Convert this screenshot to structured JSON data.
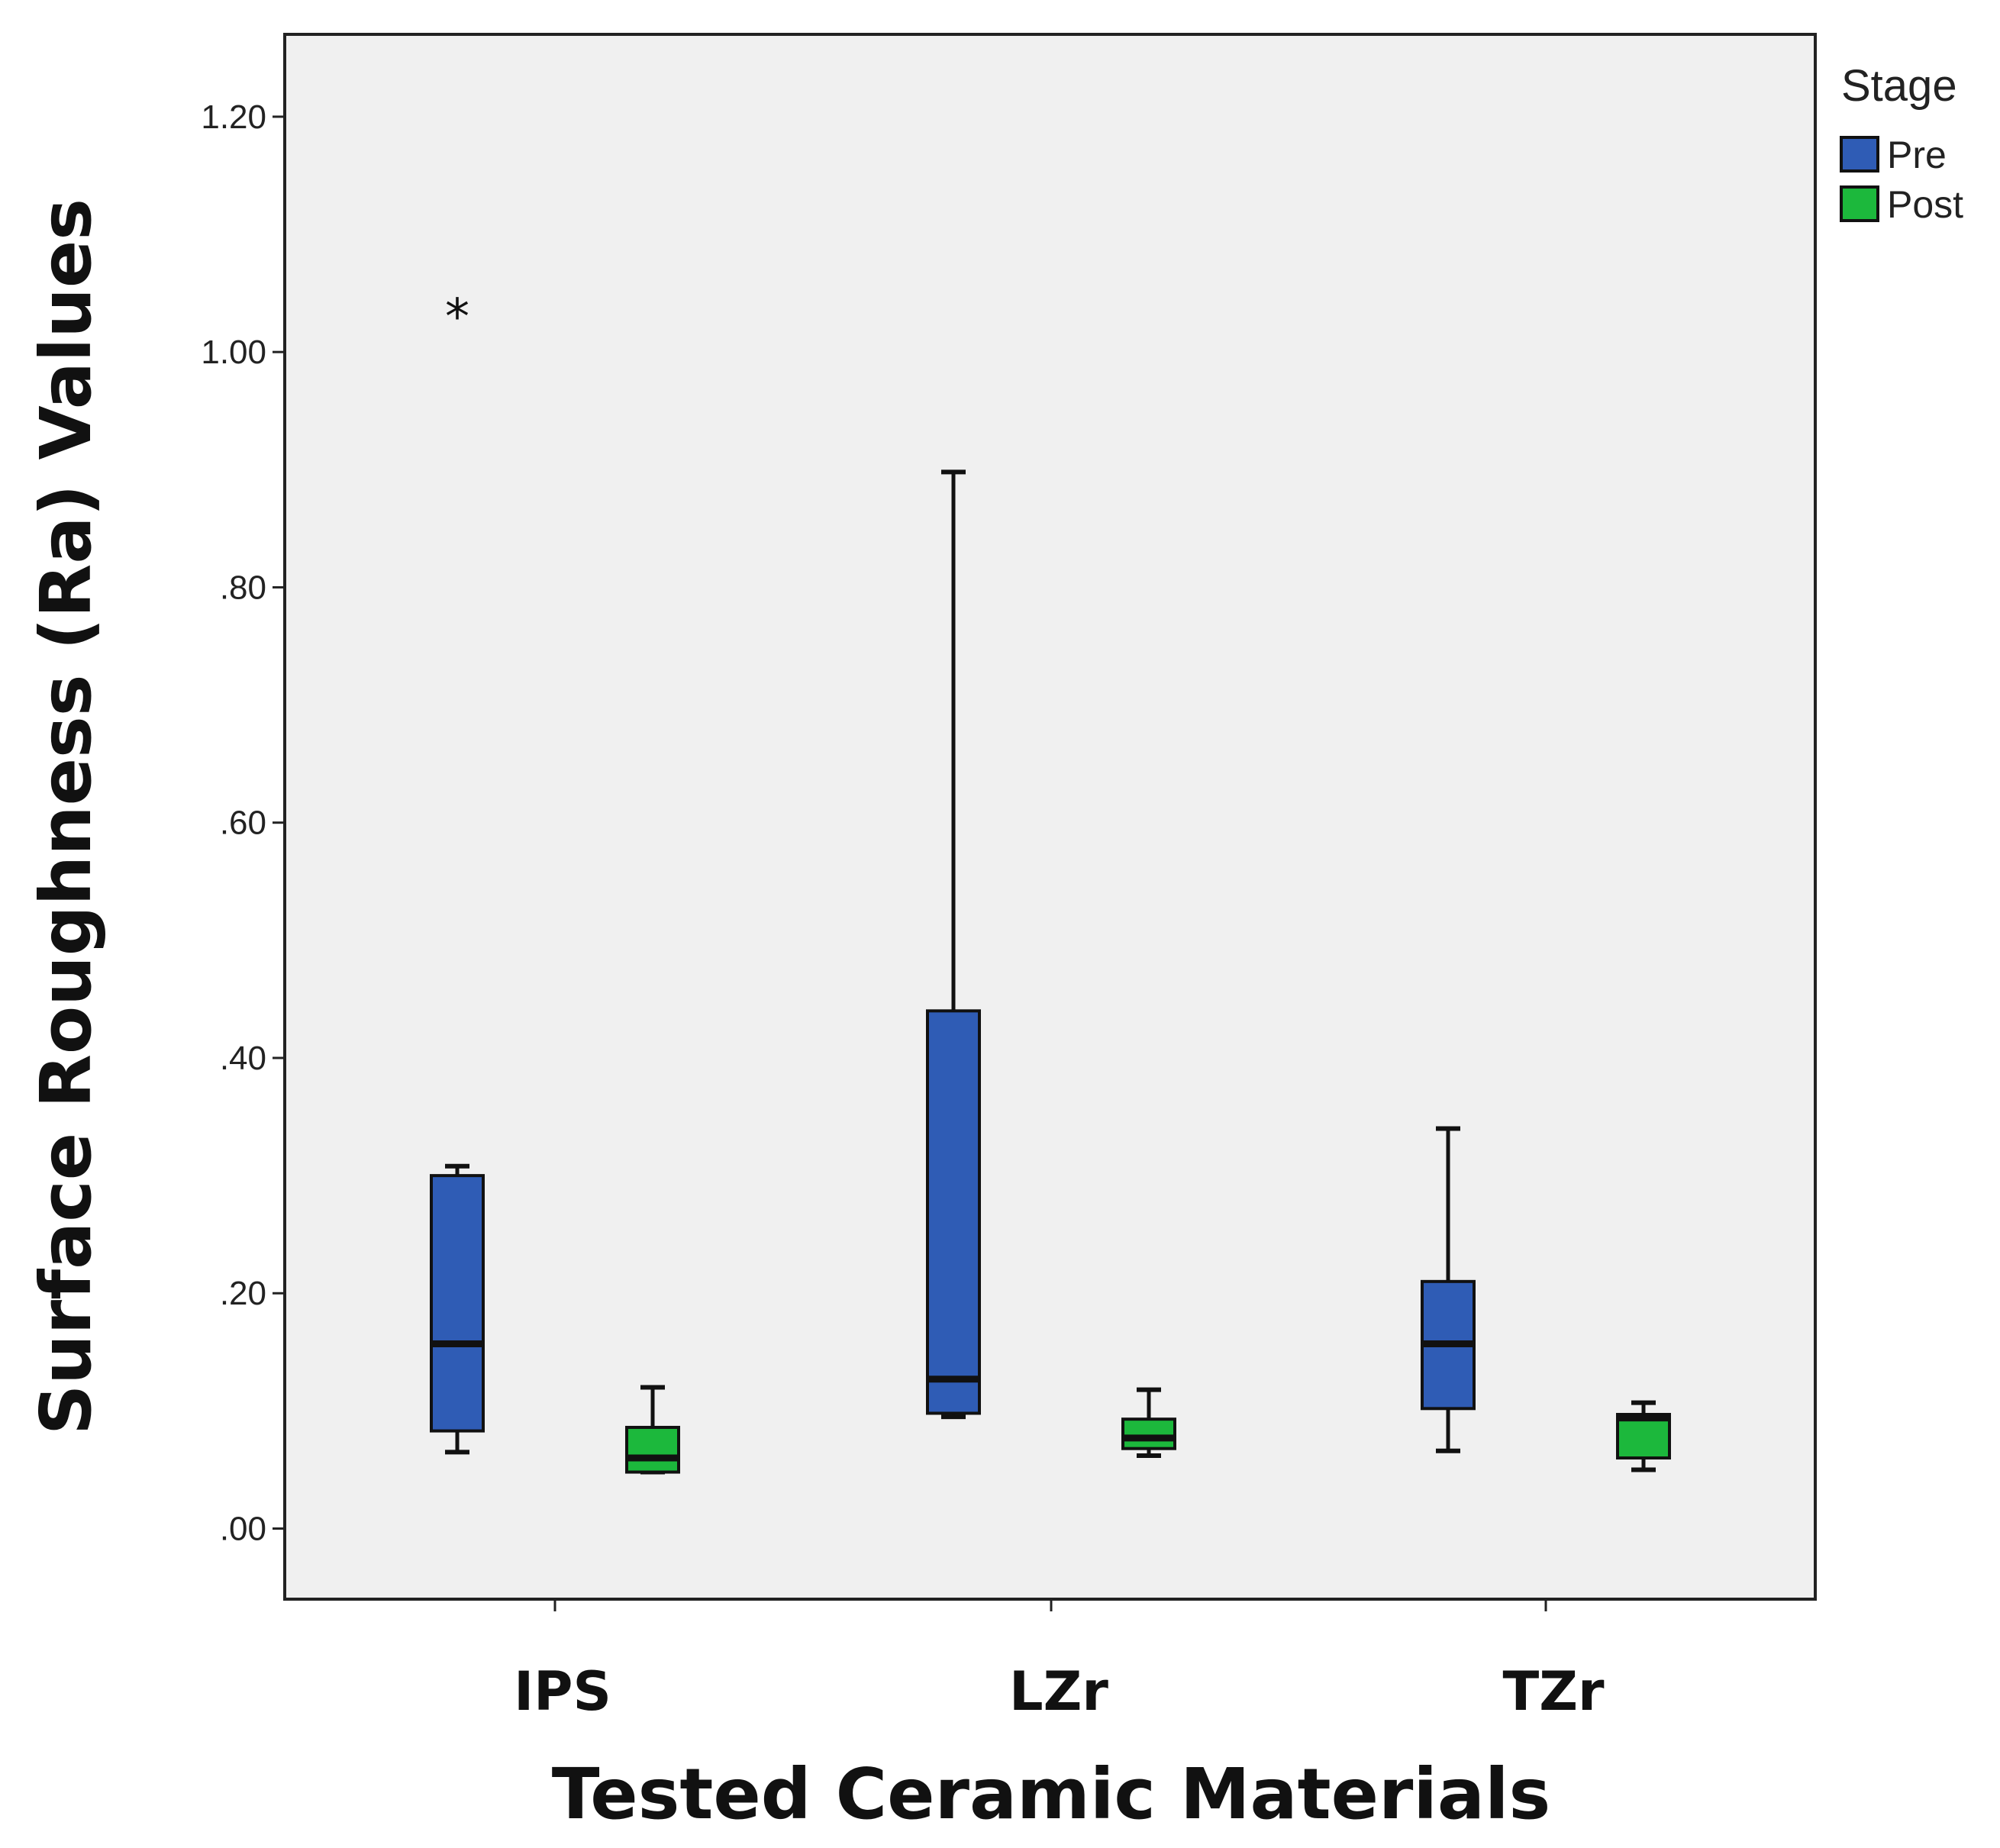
{
  "colors": {
    "plot_background": "#f0f0f0",
    "pre": "#2f5cb5",
    "post": "#1cb83c",
    "line": "#111111"
  },
  "chart_data": {
    "type": "boxplot",
    "xlabel": "Tested Ceramic Materials",
    "ylabel": "Surface Roughness (Ra) Values",
    "ylim": [
      -0.06,
      1.27
    ],
    "yticks": [
      0.0,
      0.2,
      0.4,
      0.6,
      0.8,
      1.0,
      1.2
    ],
    "ytick_labels": [
      ".00",
      ".20",
      ".40",
      ".60",
      ".80",
      "1.00",
      "1.20"
    ],
    "categories": [
      "IPS",
      "LZr",
      "TZr"
    ],
    "legend": {
      "title": "Stage",
      "position": "top-right",
      "entries": [
        "Pre",
        "Post"
      ]
    },
    "series": [
      {
        "name": "Pre",
        "boxes": [
          {
            "category": "IPS",
            "min": 0.065,
            "q1": 0.083,
            "median": 0.157,
            "q3": 0.3,
            "max": 0.308,
            "outliers": [
              {
                "value": 1.035,
                "marker": "*"
              }
            ]
          },
          {
            "category": "LZr",
            "min": 0.095,
            "q1": 0.098,
            "median": 0.127,
            "q3": 0.44,
            "max": 0.898,
            "outliers": []
          },
          {
            "category": "TZr",
            "min": 0.066,
            "q1": 0.102,
            "median": 0.157,
            "q3": 0.21,
            "max": 0.34,
            "outliers": []
          }
        ]
      },
      {
        "name": "Post",
        "boxes": [
          {
            "category": "IPS",
            "min": 0.048,
            "q1": 0.048,
            "median": 0.06,
            "q3": 0.086,
            "max": 0.12,
            "outliers": []
          },
          {
            "category": "LZr",
            "min": 0.062,
            "q1": 0.068,
            "median": 0.077,
            "q3": 0.093,
            "max": 0.118,
            "outliers": []
          },
          {
            "category": "TZr",
            "min": 0.05,
            "q1": 0.06,
            "median": 0.094,
            "q3": 0.097,
            "max": 0.107,
            "outliers": []
          }
        ]
      }
    ]
  }
}
